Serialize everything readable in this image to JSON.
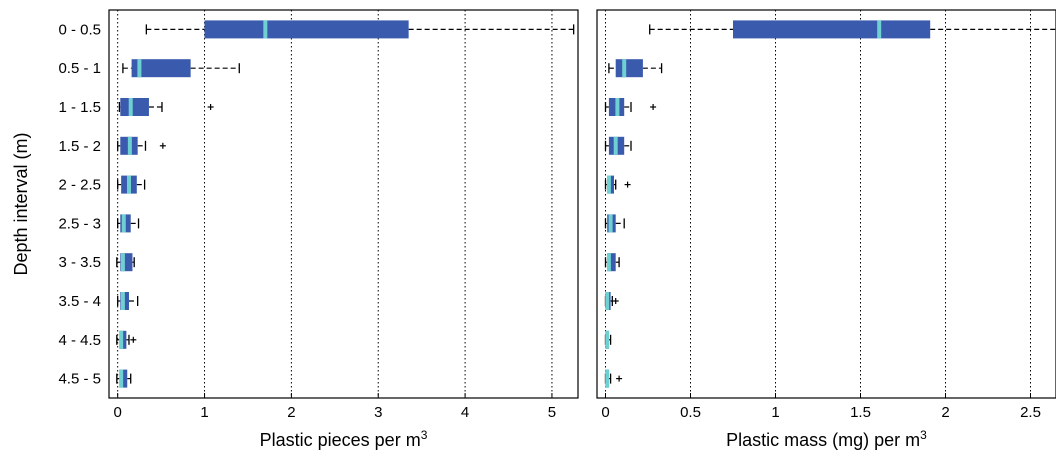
{
  "chart_data": [
    {
      "type": "box",
      "xlabel": "Plastic pieces per m",
      "xlabel_sup": "3",
      "ylabel": "Depth interval (m)",
      "xlim": [
        -0.1,
        5.3
      ],
      "xticks": [
        "0",
        "1",
        "2",
        "3",
        "4",
        "5"
      ],
      "xtick_values": [
        0,
        1,
        2,
        3,
        4,
        5
      ],
      "grid": "vertical dotted",
      "categories": [
        "0 - 0.5",
        "0.5 - 1",
        "1 - 1.5",
        "1.5 - 2",
        "2 - 2.5",
        "2.5 - 3",
        "3 - 3.5",
        "3.5 - 4",
        "4 - 4.5",
        "4.5 - 5"
      ],
      "boxes": [
        {
          "whisker_low": 0.33,
          "q1": 1.0,
          "median": 1.7,
          "q3": 3.35,
          "whisker_high": 5.25,
          "outliers": []
        },
        {
          "whisker_low": 0.06,
          "q1": 0.16,
          "median": 0.25,
          "q3": 0.84,
          "whisker_high": 1.4,
          "outliers": []
        },
        {
          "whisker_low": 0.02,
          "q1": 0.03,
          "median": 0.15,
          "q3": 0.36,
          "whisker_high": 0.51,
          "outliers": [
            1.07
          ]
        },
        {
          "whisker_low": 0.0,
          "q1": 0.03,
          "median": 0.14,
          "q3": 0.23,
          "whisker_high": 0.32,
          "outliers": [
            0.52
          ]
        },
        {
          "whisker_low": 0.0,
          "q1": 0.04,
          "median": 0.13,
          "q3": 0.22,
          "whisker_high": 0.31,
          "outliers": []
        },
        {
          "whisker_low": 0.0,
          "q1": 0.03,
          "median": 0.07,
          "q3": 0.15,
          "whisker_high": 0.24,
          "outliers": []
        },
        {
          "whisker_low": -0.01,
          "q1": 0.03,
          "median": 0.06,
          "q3": 0.17,
          "whisker_high": 0.19,
          "outliers": []
        },
        {
          "whisker_low": 0.0,
          "q1": 0.03,
          "median": 0.06,
          "q3": 0.13,
          "whisker_high": 0.23,
          "outliers": []
        },
        {
          "whisker_low": -0.01,
          "q1": 0.02,
          "median": 0.04,
          "q3": 0.1,
          "whisker_high": 0.13,
          "outliers": [
            0.18
          ]
        },
        {
          "whisker_low": -0.01,
          "q1": 0.02,
          "median": 0.04,
          "q3": 0.11,
          "whisker_high": 0.15,
          "outliers": []
        }
      ]
    },
    {
      "type": "box",
      "xlabel": "Plastic mass (mg) per m",
      "xlabel_sup": "3",
      "ylabel": "",
      "xlim": [
        -0.05,
        2.65
      ],
      "xticks": [
        "0",
        "0.5",
        "1",
        "1.5",
        "2",
        "2.5"
      ],
      "xtick_values": [
        0,
        0.5,
        1,
        1.5,
        2,
        2.5
      ],
      "grid": "vertical dotted",
      "categories": [
        "0 - 0.5",
        "0.5 - 1",
        "1 - 1.5",
        "1.5 - 2",
        "2 - 2.5",
        "2.5 - 3",
        "3 - 3.5",
        "3.5 - 4",
        "4 - 4.5",
        "4.5 - 5"
      ],
      "boxes": [
        {
          "whisker_low": 0.26,
          "q1": 0.75,
          "median": 1.61,
          "q3": 1.91,
          "whisker_high": 2.7,
          "outliers": []
        },
        {
          "whisker_low": 0.02,
          "q1": 0.06,
          "median": 0.11,
          "q3": 0.22,
          "whisker_high": 0.33,
          "outliers": []
        },
        {
          "whisker_low": 0.0,
          "q1": 0.02,
          "median": 0.07,
          "q3": 0.11,
          "whisker_high": 0.15,
          "outliers": [
            0.28
          ]
        },
        {
          "whisker_low": 0.0,
          "q1": 0.02,
          "median": 0.06,
          "q3": 0.11,
          "whisker_high": 0.15,
          "outliers": []
        },
        {
          "whisker_low": 0.0,
          "q1": 0.01,
          "median": 0.02,
          "q3": 0.05,
          "whisker_high": 0.06,
          "outliers": [
            0.13
          ]
        },
        {
          "whisker_low": 0.0,
          "q1": 0.01,
          "median": 0.03,
          "q3": 0.06,
          "whisker_high": 0.11,
          "outliers": []
        },
        {
          "whisker_low": 0.0,
          "q1": 0.01,
          "median": 0.02,
          "q3": 0.06,
          "whisker_high": 0.08,
          "outliers": []
        },
        {
          "whisker_low": 0.0,
          "q1": 0.0,
          "median": 0.01,
          "q3": 0.03,
          "whisker_high": 0.04,
          "outliers": [
            0.06
          ]
        },
        {
          "whisker_low": 0.0,
          "q1": 0.0,
          "median": 0.01,
          "q3": 0.02,
          "whisker_high": 0.03,
          "outliers": []
        },
        {
          "whisker_low": 0.0,
          "q1": 0.0,
          "median": 0.01,
          "q3": 0.02,
          "whisker_high": 0.03,
          "outliers": [
            0.08
          ]
        }
      ]
    }
  ],
  "colors": {
    "box_fill": "#3a5aad",
    "median": "#6fd0d2",
    "whisker": "#000000",
    "grid": "#000000",
    "frame": "#000000"
  }
}
